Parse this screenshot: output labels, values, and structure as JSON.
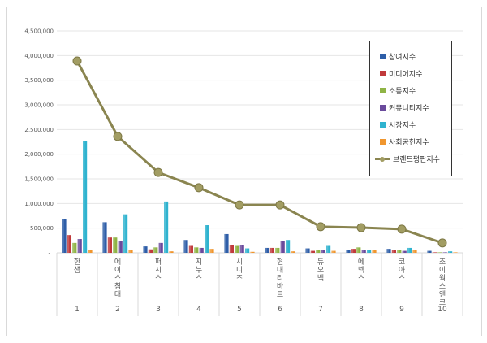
{
  "chart_data": {
    "type": "bar",
    "categories": [
      "한샘",
      "에이스침대",
      "퍼시스",
      "지누스",
      "시디즈",
      "현대리바트",
      "듀오백",
      "에넥스",
      "코아스",
      "조이웍스앤코"
    ],
    "ranks": [
      "1",
      "2",
      "3",
      "4",
      "5",
      "6",
      "7",
      "8",
      "9",
      "10"
    ],
    "ylim": [
      0,
      4500000
    ],
    "yticks": [
      "-",
      "500,000",
      "1,000,000",
      "1,500,000",
      "2,000,000",
      "2,500,000",
      "3,000,000",
      "3,500,000",
      "4,000,000",
      "4,500,000"
    ],
    "grid": true,
    "legend_position": "top-right",
    "series": [
      {
        "name": "참여지수",
        "color": "#2e5ea8",
        "values": [
          680000,
          620000,
          130000,
          260000,
          380000,
          100000,
          90000,
          60000,
          80000,
          40000
        ]
      },
      {
        "name": "미디어지수",
        "color": "#c0393b",
        "values": [
          360000,
          310000,
          70000,
          140000,
          150000,
          100000,
          40000,
          80000,
          50000,
          10000
        ]
      },
      {
        "name": "소통지수",
        "color": "#8fb445",
        "values": [
          200000,
          310000,
          110000,
          110000,
          140000,
          100000,
          60000,
          110000,
          50000,
          10000
        ]
      },
      {
        "name": "커뮤니티지수",
        "color": "#6a4a9c",
        "values": [
          280000,
          240000,
          200000,
          100000,
          150000,
          240000,
          60000,
          50000,
          40000,
          10000
        ]
      },
      {
        "name": "시장지수",
        "color": "#2fb3cf",
        "values": [
          2270000,
          780000,
          1040000,
          560000,
          90000,
          260000,
          140000,
          50000,
          100000,
          30000
        ]
      },
      {
        "name": "사회공헌지수",
        "color": "#f0962e",
        "values": [
          50000,
          50000,
          30000,
          80000,
          20000,
          30000,
          40000,
          50000,
          50000,
          10000
        ]
      }
    ],
    "line": {
      "name": "브랜드평판지수",
      "color": "#8a8550",
      "values": [
        3890000,
        2360000,
        1630000,
        1320000,
        970000,
        970000,
        530000,
        510000,
        480000,
        200000
      ]
    }
  }
}
